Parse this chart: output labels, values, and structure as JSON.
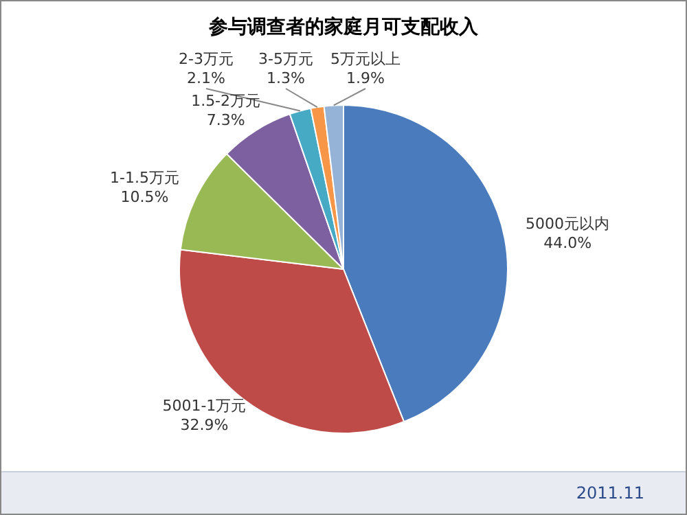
{
  "chart_data": {
    "type": "pie",
    "title": "参与调查者的家庭月可支配收入",
    "categories": [
      "5000元以内",
      "5001-1万元",
      "1-1.5万元",
      "1.5-2万元",
      "2-3万元",
      "3-5万元",
      "5万元以上"
    ],
    "values": [
      44.0,
      32.9,
      10.5,
      7.3,
      2.1,
      1.3,
      1.9
    ],
    "colors": [
      "#4a7bbd",
      "#be4b48",
      "#98b954",
      "#7d60a0",
      "#46aac5",
      "#f79646",
      "#95b3d7"
    ],
    "value_labels": [
      "44.0%",
      "32.9%",
      "10.5%",
      "7.3%",
      "2.1%",
      "1.3%",
      "1.9%"
    ],
    "annotations": [
      "2011.11"
    ]
  }
}
